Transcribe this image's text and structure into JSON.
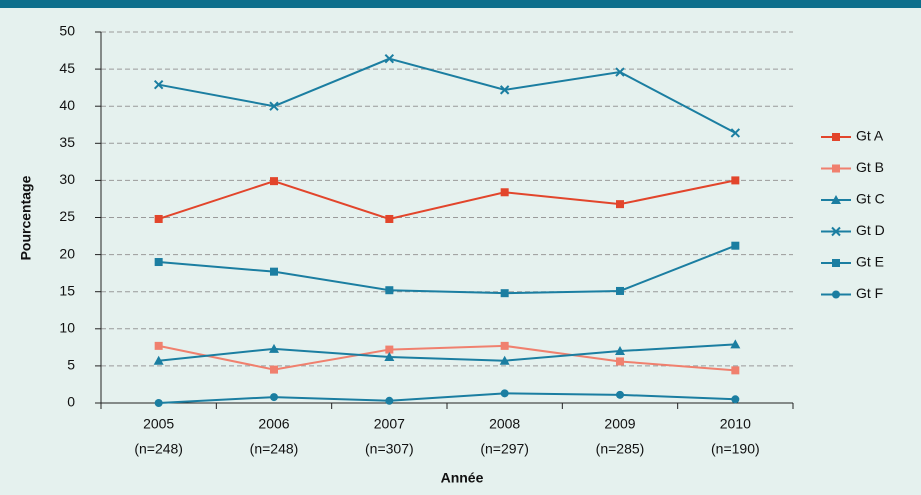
{
  "chart_data": {
    "type": "line",
    "x_label": "Année",
    "y_label": "Pourcentage",
    "categories": [
      "2005",
      "2006",
      "2007",
      "2008",
      "2009",
      "2010"
    ],
    "category_sublabels": [
      "(n=248)",
      "(n=248)",
      "(n=307)",
      "(n=297)",
      "(n=285)",
      "(n=190)"
    ],
    "series": [
      {
        "name": "Gt A",
        "color": "#e2452b",
        "marker": "square",
        "values": [
          24.8,
          29.9,
          24.8,
          28.4,
          26.8,
          30.0
        ]
      },
      {
        "name": "Gt B",
        "color": "#f0806e",
        "marker": "square",
        "values": [
          7.7,
          4.5,
          7.2,
          7.7,
          5.6,
          4.4
        ]
      },
      {
        "name": "Gt C",
        "color": "#1b7ea1",
        "marker": "triangle",
        "values": [
          5.7,
          7.3,
          6.2,
          5.7,
          7.0,
          7.9
        ]
      },
      {
        "name": "Gt D",
        "color": "#1b7ea1",
        "marker": "x",
        "values": [
          42.9,
          40.0,
          46.4,
          42.2,
          44.6,
          36.4
        ]
      },
      {
        "name": "Gt E",
        "color": "#1b7ea1",
        "marker": "square",
        "values": [
          19.0,
          17.7,
          15.2,
          14.8,
          15.1,
          21.2
        ]
      },
      {
        "name": "Gt F",
        "color": "#1b7ea1",
        "marker": "circle",
        "values": [
          0,
          0.8,
          0.3,
          1.3,
          1.1,
          0.5
        ]
      }
    ],
    "ylim": [
      0,
      50
    ],
    "yticks": [
      0,
      5,
      10,
      15,
      20,
      25,
      30,
      35,
      40,
      45,
      50
    ],
    "grid": true,
    "legend": "right"
  }
}
